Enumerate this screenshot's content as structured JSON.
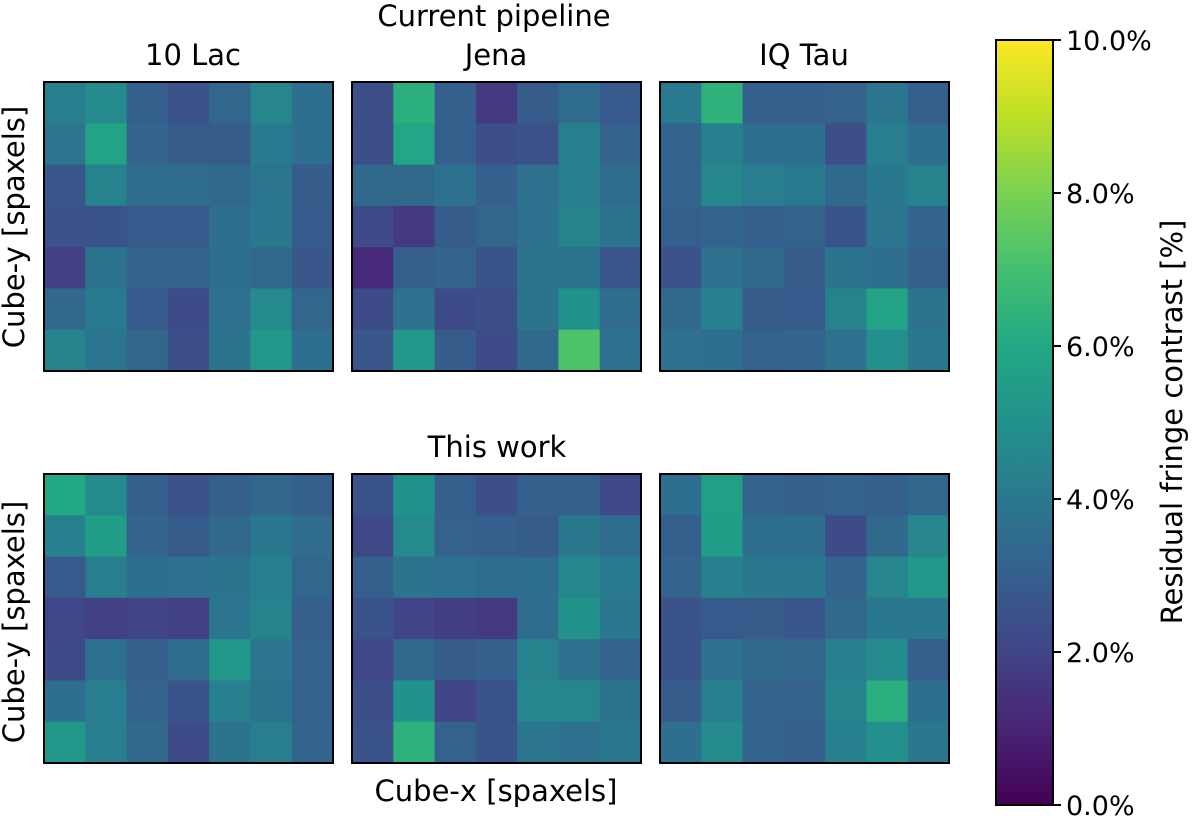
{
  "chart_data": {
    "type": "heatmap",
    "colormap": "viridis",
    "row_titles": [
      "Current pipeline",
      "This work"
    ],
    "ylabel": "Cube-y [spaxels]",
    "xlabel": "Cube-x [spaxels]",
    "colorbar": {
      "label": "Residual fringe contrast [%]",
      "range": [
        0,
        10
      ],
      "ticks": [
        0,
        2,
        4,
        6,
        8,
        10
      ],
      "tick_labels": [
        "0.0%",
        "2.0%",
        "4.0%",
        "6.0%",
        "8.0%",
        "10.0%"
      ]
    },
    "panels": [
      {
        "row": 0,
        "col": 0,
        "title": "10 Lac",
        "values": [
          [
            4.2,
            4.7,
            3.0,
            2.5,
            3.3,
            4.5,
            3.6
          ],
          [
            3.9,
            5.8,
            3.2,
            2.9,
            2.9,
            4.1,
            3.6
          ],
          [
            2.7,
            4.4,
            3.5,
            3.5,
            3.4,
            3.9,
            2.9
          ],
          [
            2.5,
            2.6,
            2.8,
            2.8,
            3.6,
            4.0,
            2.8
          ],
          [
            1.9,
            3.8,
            3.2,
            3.1,
            3.6,
            3.4,
            2.7
          ],
          [
            3.4,
            4.1,
            2.8,
            2.3,
            3.7,
            4.7,
            3.3
          ],
          [
            4.4,
            3.9,
            3.3,
            2.4,
            3.8,
            5.3,
            3.6
          ]
        ]
      },
      {
        "row": 0,
        "col": 1,
        "title": "Jena",
        "values": [
          [
            2.4,
            6.3,
            3.0,
            1.7,
            2.9,
            3.5,
            2.8
          ],
          [
            2.4,
            5.9,
            3.0,
            2.4,
            2.5,
            4.3,
            3.1
          ],
          [
            3.4,
            3.4,
            3.7,
            3.0,
            3.7,
            4.2,
            3.5
          ],
          [
            2.3,
            1.7,
            2.9,
            3.3,
            3.7,
            4.4,
            3.8
          ],
          [
            1.2,
            3.0,
            3.2,
            2.6,
            3.8,
            3.8,
            2.7
          ],
          [
            2.3,
            3.7,
            2.3,
            2.4,
            3.8,
            5.0,
            3.5
          ],
          [
            2.7,
            5.3,
            2.9,
            2.3,
            3.4,
            7.2,
            3.7
          ]
        ]
      },
      {
        "row": 0,
        "col": 2,
        "title": "IQ Tau",
        "values": [
          [
            4.1,
            6.4,
            3.0,
            3.0,
            3.1,
            3.9,
            3.0
          ],
          [
            3.2,
            4.3,
            3.6,
            3.6,
            2.4,
            4.2,
            3.6
          ],
          [
            3.2,
            4.6,
            4.2,
            4.1,
            3.4,
            4.0,
            4.4
          ],
          [
            3.0,
            3.2,
            3.0,
            3.1,
            2.6,
            3.9,
            3.2
          ],
          [
            2.5,
            3.7,
            3.4,
            2.9,
            3.8,
            3.6,
            3.0
          ],
          [
            3.4,
            4.3,
            2.9,
            2.8,
            4.4,
            5.8,
            3.8
          ],
          [
            3.7,
            3.6,
            3.1,
            3.2,
            3.7,
            4.9,
            4.0
          ]
        ]
      },
      {
        "row": 1,
        "col": 0,
        "title": "",
        "values": [
          [
            6.0,
            4.7,
            3.0,
            2.5,
            3.0,
            3.3,
            3.0
          ],
          [
            4.3,
            5.5,
            3.2,
            2.9,
            3.4,
            4.0,
            3.5
          ],
          [
            2.8,
            4.2,
            3.6,
            3.7,
            3.8,
            4.3,
            3.3
          ],
          [
            2.1,
            1.9,
            2.0,
            1.9,
            3.9,
            4.4,
            3.0
          ],
          [
            2.3,
            3.7,
            3.0,
            3.5,
            5.3,
            3.9,
            3.1
          ],
          [
            3.6,
            4.2,
            3.1,
            2.6,
            4.3,
            3.8,
            3.1
          ],
          [
            5.3,
            4.2,
            3.4,
            2.3,
            3.8,
            4.2,
            3.2
          ]
        ]
      },
      {
        "row": 1,
        "col": 1,
        "title": "",
        "values": [
          [
            2.6,
            5.0,
            3.0,
            2.4,
            3.0,
            3.0,
            2.2
          ],
          [
            2.2,
            4.7,
            3.1,
            3.0,
            2.9,
            4.0,
            3.5
          ],
          [
            3.0,
            3.8,
            3.7,
            3.5,
            3.6,
            4.6,
            4.1
          ],
          [
            2.6,
            2.0,
            1.8,
            1.7,
            3.5,
            5.1,
            4.0
          ],
          [
            2.1,
            3.4,
            2.9,
            3.0,
            4.4,
            3.7,
            3.2
          ],
          [
            2.4,
            5.1,
            2.0,
            2.6,
            4.6,
            4.6,
            3.8
          ],
          [
            2.6,
            6.4,
            3.1,
            2.6,
            3.9,
            3.7,
            4.0
          ]
        ]
      },
      {
        "row": 1,
        "col": 2,
        "title": "",
        "values": [
          [
            3.6,
            5.6,
            3.2,
            3.0,
            3.1,
            3.0,
            3.3
          ],
          [
            3.0,
            5.5,
            3.6,
            3.6,
            2.3,
            3.4,
            4.5
          ],
          [
            3.2,
            4.3,
            4.0,
            4.0,
            3.2,
            4.5,
            5.3
          ],
          [
            2.6,
            2.8,
            2.9,
            2.7,
            3.4,
            4.0,
            4.0
          ],
          [
            2.6,
            3.7,
            3.4,
            3.3,
            4.3,
            4.7,
            3.0
          ],
          [
            2.9,
            4.3,
            3.2,
            3.1,
            4.4,
            6.3,
            3.6
          ],
          [
            3.6,
            4.7,
            3.2,
            3.0,
            4.3,
            4.9,
            4.0
          ]
        ]
      }
    ]
  }
}
